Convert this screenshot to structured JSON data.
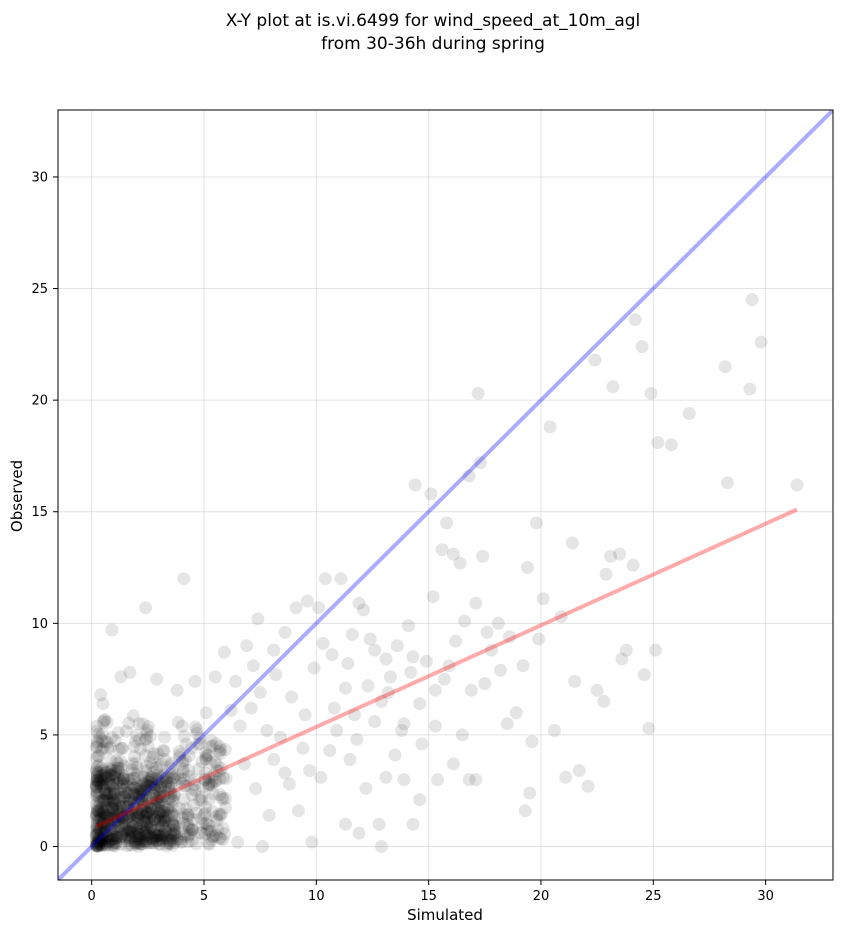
{
  "chart_data": {
    "type": "scatter",
    "title_line1": "X-Y plot at is.vi.6499 for wind_speed_at_10m_agl",
    "title_line2": "from 30-36h during spring",
    "xlabel": "Simulated",
    "ylabel": "Observed",
    "xlim": [
      -1.5,
      33
    ],
    "ylim": [
      -1.5,
      33
    ],
    "xticks": [
      0,
      5,
      10,
      15,
      20,
      25,
      30
    ],
    "yticks": [
      0,
      5,
      10,
      15,
      20,
      25,
      30
    ],
    "grid": true,
    "colors": {
      "points": "#000000",
      "one_to_one_line": "#0000ff",
      "fit_line": "#ff0000"
    },
    "one_to_one_line": {
      "x": [
        -1.5,
        33
      ],
      "y": [
        -1.5,
        33
      ]
    },
    "fit_line": {
      "x": [
        0.2,
        31.4
      ],
      "y": [
        0.9,
        15.1
      ]
    },
    "dense_cluster": {
      "x_range": [
        0.2,
        6
      ],
      "y_range": [
        0,
        6
      ],
      "approx_count": 900
    },
    "points": [
      [
        0.9,
        9.7
      ],
      [
        2.4,
        10.7
      ],
      [
        4.1,
        12.0
      ],
      [
        0.4,
        6.8
      ],
      [
        0.5,
        6.4
      ],
      [
        1.3,
        7.6
      ],
      [
        1.7,
        7.8
      ],
      [
        2.9,
        7.5
      ],
      [
        3.8,
        7.0
      ],
      [
        4.6,
        7.4
      ],
      [
        5.5,
        7.6
      ],
      [
        5.9,
        8.7
      ],
      [
        6.4,
        7.4
      ],
      [
        6.9,
        9.0
      ],
      [
        7.4,
        10.2
      ],
      [
        7.2,
        8.1
      ],
      [
        8.1,
        8.8
      ],
      [
        8.6,
        9.6
      ],
      [
        9.1,
        10.7
      ],
      [
        9.6,
        11.0
      ],
      [
        10.1,
        10.7
      ],
      [
        10.4,
        12.0
      ],
      [
        11.1,
        12.0
      ],
      [
        10.3,
        9.1
      ],
      [
        11.4,
        8.2
      ],
      [
        11.9,
        10.9
      ],
      [
        12.4,
        9.3
      ],
      [
        12.6,
        8.8
      ],
      [
        13.1,
        8.4
      ],
      [
        13.6,
        9.0
      ],
      [
        14.1,
        9.9
      ],
      [
        14.3,
        8.5
      ],
      [
        14.4,
        16.2
      ],
      [
        15.1,
        15.8
      ],
      [
        15.2,
        11.2
      ],
      [
        15.6,
        13.3
      ],
      [
        15.8,
        14.5
      ],
      [
        16.1,
        13.1
      ],
      [
        16.4,
        12.7
      ],
      [
        16.8,
        16.6
      ],
      [
        17.1,
        10.9
      ],
      [
        17.3,
        17.2
      ],
      [
        17.4,
        13.0
      ],
      [
        17.6,
        9.6
      ],
      [
        18.1,
        10.0
      ],
      [
        17.2,
        20.3
      ],
      [
        18.5,
        5.5
      ],
      [
        18.9,
        6.0
      ],
      [
        19.2,
        8.1
      ],
      [
        19.4,
        12.5
      ],
      [
        19.8,
        14.5
      ],
      [
        20.1,
        11.1
      ],
      [
        19.6,
        4.7
      ],
      [
        19.5,
        2.4
      ],
      [
        19.3,
        1.6
      ],
      [
        20.4,
        18.8
      ],
      [
        20.6,
        5.2
      ],
      [
        20.9,
        10.3
      ],
      [
        21.1,
        3.1
      ],
      [
        21.4,
        13.6
      ],
      [
        21.5,
        7.4
      ],
      [
        21.7,
        3.4
      ],
      [
        22.1,
        2.7
      ],
      [
        22.4,
        21.8
      ],
      [
        22.5,
        7.0
      ],
      [
        22.8,
        6.5
      ],
      [
        22.9,
        12.2
      ],
      [
        23.1,
        13.0
      ],
      [
        23.2,
        20.6
      ],
      [
        23.5,
        13.1
      ],
      [
        23.6,
        8.4
      ],
      [
        23.8,
        8.8
      ],
      [
        24.1,
        12.6
      ],
      [
        24.2,
        23.6
      ],
      [
        24.5,
        22.4
      ],
      [
        24.9,
        20.3
      ],
      [
        25.1,
        8.8
      ],
      [
        25.2,
        18.1
      ],
      [
        25.8,
        18.0
      ],
      [
        24.6,
        7.7
      ],
      [
        24.8,
        5.3
      ],
      [
        26.6,
        19.4
      ],
      [
        28.2,
        21.5
      ],
      [
        28.3,
        16.3
      ],
      [
        29.3,
        20.5
      ],
      [
        29.4,
        24.5
      ],
      [
        29.8,
        22.6
      ],
      [
        31.4,
        16.2
      ],
      [
        12.1,
        10.6
      ],
      [
        11.6,
        9.5
      ],
      [
        13.3,
        7.6
      ],
      [
        13.8,
        5.2
      ],
      [
        14.6,
        6.4
      ],
      [
        15.3,
        5.4
      ],
      [
        15.7,
        7.5
      ],
      [
        16.6,
        10.1
      ],
      [
        16.9,
        7.0
      ],
      [
        12.9,
        6.5
      ],
      [
        11.3,
        7.1
      ],
      [
        10.8,
        6.2
      ],
      [
        10.6,
        4.3
      ],
      [
        10.2,
        3.1
      ],
      [
        11.8,
        4.8
      ],
      [
        12.2,
        2.6
      ],
      [
        13.1,
        3.1
      ],
      [
        13.9,
        3.0
      ],
      [
        14.6,
        2.1
      ],
      [
        15.4,
        3.0
      ],
      [
        16.1,
        3.7
      ],
      [
        16.8,
        3.0
      ],
      [
        17.1,
        3.0
      ],
      [
        12.8,
        1.0
      ],
      [
        11.9,
        0.6
      ],
      [
        12.9,
        0.0
      ],
      [
        14.3,
        1.0
      ],
      [
        11.3,
        1.0
      ],
      [
        13.5,
        4.1
      ],
      [
        12.6,
        5.6
      ],
      [
        13.9,
        5.5
      ],
      [
        14.7,
        4.6
      ],
      [
        15.3,
        7.0
      ],
      [
        16.5,
        5.0
      ],
      [
        17.5,
        7.3
      ],
      [
        18.2,
        7.9
      ],
      [
        8.9,
        6.7
      ],
      [
        9.5,
        5.9
      ],
      [
        8.4,
        4.9
      ],
      [
        9.7,
        3.4
      ],
      [
        8.8,
        2.8
      ],
      [
        9.2,
        1.6
      ],
      [
        9.8,
        0.2
      ],
      [
        7.6,
        0.0
      ],
      [
        6.5,
        0.2
      ],
      [
        7.9,
        1.4
      ],
      [
        8.6,
        3.3
      ],
      [
        7.8,
        5.2
      ],
      [
        7.1,
        6.2
      ],
      [
        6.6,
        5.4
      ],
      [
        6.8,
        3.7
      ],
      [
        5.8,
        2.2
      ],
      [
        9.9,
        8.0
      ],
      [
        10.7,
        8.6
      ],
      [
        8.2,
        7.7
      ],
      [
        7.5,
        6.9
      ],
      [
        6.2,
        6.1
      ],
      [
        11.7,
        5.9
      ],
      [
        10.9,
        5.2
      ],
      [
        9.4,
        4.4
      ],
      [
        8.1,
        3.9
      ],
      [
        7.3,
        2.6
      ],
      [
        12.3,
        7.2
      ],
      [
        13.2,
        6.9
      ],
      [
        14.2,
        7.8
      ],
      [
        14.9,
        8.3
      ],
      [
        15.9,
        8.1
      ],
      [
        16.2,
        9.2
      ],
      [
        17.8,
        8.8
      ],
      [
        18.6,
        9.4
      ],
      [
        19.9,
        9.3
      ],
      [
        11.5,
        3.9
      ]
    ]
  }
}
